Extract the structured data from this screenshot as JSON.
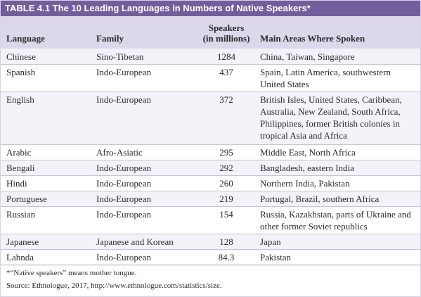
{
  "title": "TABLE 4.1 The 10 Leading Languages in Numbers of Native Speakers*",
  "headers": {
    "language": "Language",
    "family": "Family",
    "speakers_line1": "Speakers",
    "speakers_line2": "(in millions)",
    "areas": "Main Areas Where Spoken"
  },
  "rows": [
    {
      "language": "Chinese",
      "family": "Sino-Tibetan",
      "speakers": "1284",
      "areas": "China, Taiwan, Singapore"
    },
    {
      "language": "Spanish",
      "family": "Indo-European",
      "speakers": "437",
      "areas": "Spain, Latin America, southwestern United States"
    },
    {
      "language": "English",
      "family": "Indo-European",
      "speakers": "372",
      "areas": "British Isles, United States, Caribbean, Australia, New Zealand, South Africa, Philippines, former British colonies in tropical Asia and Africa"
    },
    {
      "language": "Arabic",
      "family": "Afro-Asiatic",
      "speakers": "295",
      "areas": "Middle East, North Africa"
    },
    {
      "language": "Bengali",
      "family": "Indo-European",
      "speakers": "292",
      "areas": "Bangladesh, eastern India"
    },
    {
      "language": "Hindi",
      "family": "Indo-European",
      "speakers": "260",
      "areas": "Northern India, Pakistan"
    },
    {
      "language": "Portuguese",
      "family": "Indo-European",
      "speakers": "219",
      "areas": "Portugal, Brazil, southern Africa"
    },
    {
      "language": "Russian",
      "family": "Indo-European",
      "speakers": "154",
      "areas": "Russia, Kazakhstan, parts of Ukraine and other former Soviet republics"
    },
    {
      "language": "Japanese",
      "family": "Japanese and Korean",
      "speakers": "128",
      "areas": "Japan"
    },
    {
      "language": "Lahnda",
      "family": "Indo-European",
      "speakers": "84.3",
      "areas": "Pakistan"
    }
  ],
  "footnote": "*“Native speakers” means mother tongue.",
  "source": "Source: Ethnologue, 2017, http://www.ethnologue.com/statistics/size."
}
